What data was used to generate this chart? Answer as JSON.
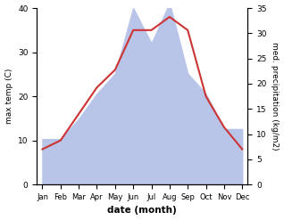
{
  "months": [
    "Jan",
    "Feb",
    "Mar",
    "Apr",
    "May",
    "Jun",
    "Jul",
    "Aug",
    "Sep",
    "Oct",
    "Nov",
    "Dec"
  ],
  "temp_max": [
    8,
    10,
    16,
    22,
    26,
    35,
    35,
    38,
    35,
    20,
    13,
    8
  ],
  "precipitation": [
    9,
    9,
    13,
    18,
    22,
    35,
    28,
    36,
    22,
    18,
    11,
    11
  ],
  "temp_color": "#cc3333",
  "precip_fill_color": "#b8c4e8",
  "temp_ylim": [
    0,
    40
  ],
  "precip_ylim": [
    0,
    35
  ],
  "temp_yticks": [
    0,
    10,
    20,
    30,
    40
  ],
  "precip_yticks": [
    0,
    5,
    10,
    15,
    20,
    25,
    30,
    35
  ],
  "temp_ylabel": "max temp (C)",
  "precip_ylabel": "med. precipitation (kg/m2)",
  "xlabel": "date (month)",
  "background_color": "#ffffff"
}
